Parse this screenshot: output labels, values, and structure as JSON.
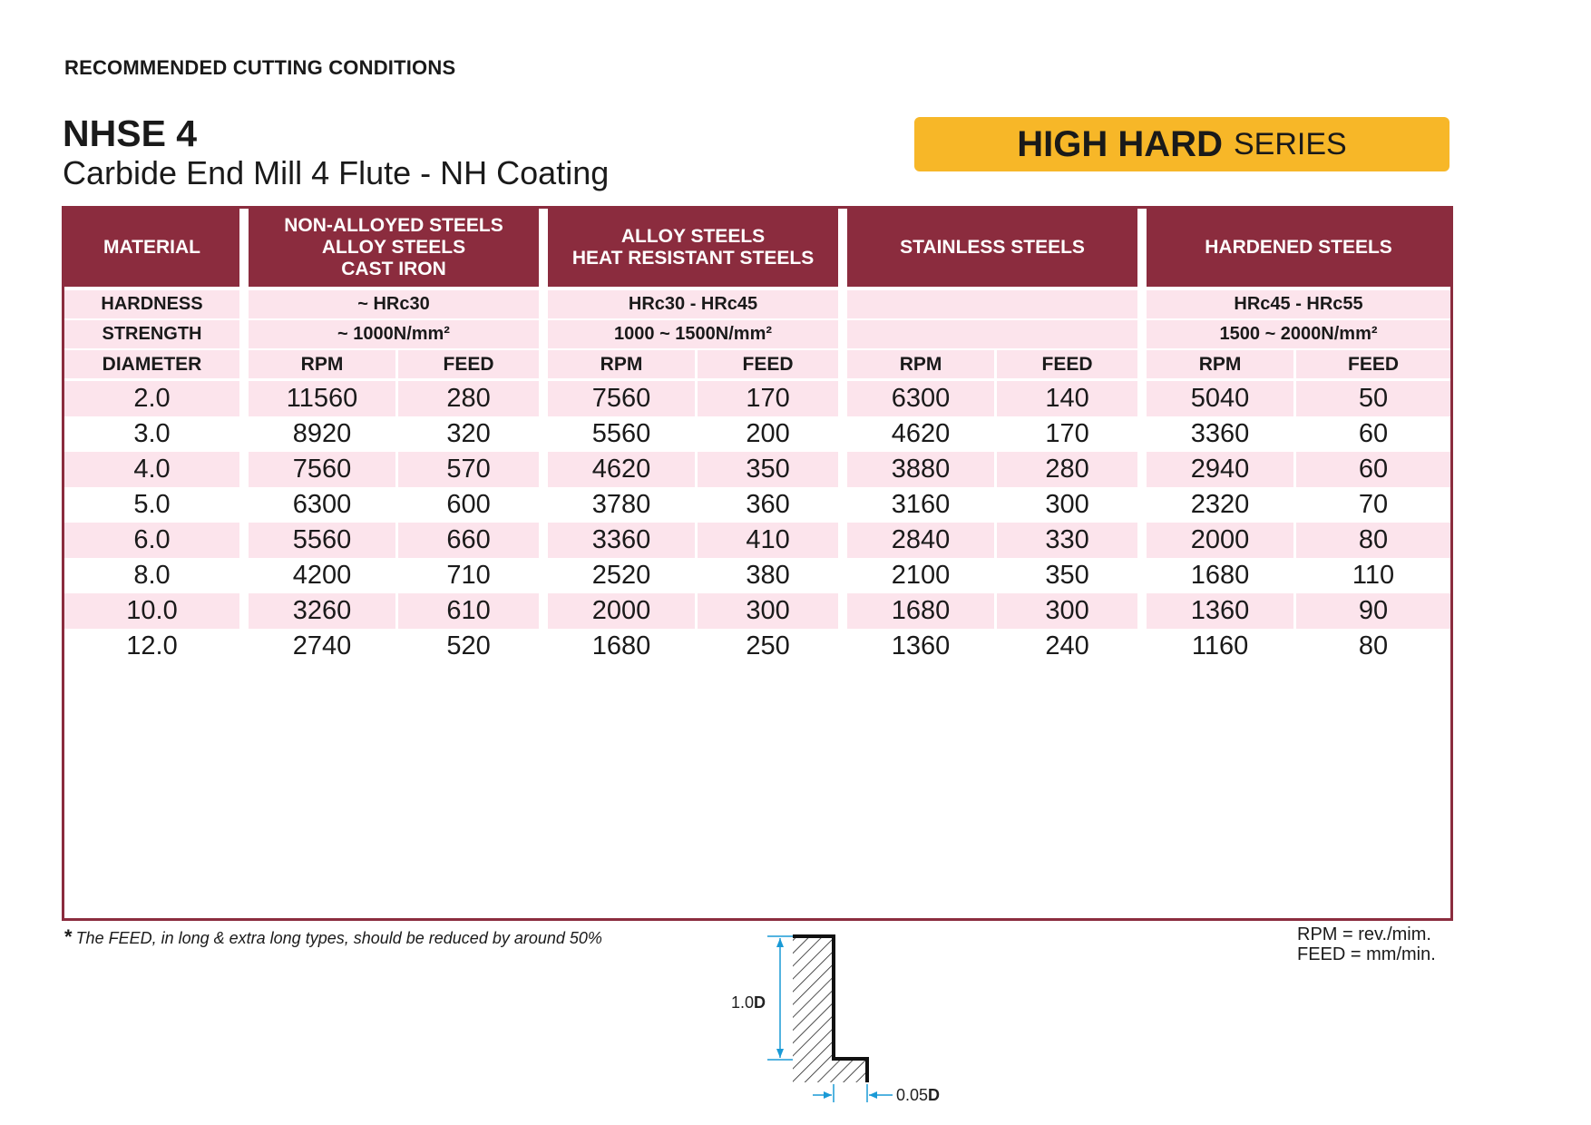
{
  "header": {
    "doc_title": "RECOMMENDED CUTTING CONDITIONS",
    "product_code": "NHSE 4",
    "product_description": "Carbide End Mill 4 Flute - NH Coating",
    "series_badge": {
      "strong": "HIGH HARD",
      "light": "SERIES",
      "color": "#f7b728"
    }
  },
  "colors": {
    "header_bg": "#8b2c3e",
    "row_tint": "#fce4ec"
  },
  "table": {
    "material_label": "MATERIAL",
    "hardness_label": "HARDNESS",
    "strength_label": "STRENGTH",
    "diameter_label": "DIAMETER",
    "rpm_label": "RPM",
    "feed_label": "FEED",
    "materials": [
      {
        "lines": [
          "NON-ALLOYED STEELS",
          "ALLOY STEELS",
          "CAST IRON"
        ],
        "hardness": "~ HRc30",
        "strength": "~ 1000N/mm²"
      },
      {
        "lines": [
          "ALLOY STEELS",
          "HEAT RESISTANT STEELS"
        ],
        "hardness": "HRc30 - HRc45",
        "strength": "1000 ~ 1500N/mm²"
      },
      {
        "lines": [
          "STAINLESS STEELS"
        ],
        "hardness": "",
        "strength": ""
      },
      {
        "lines": [
          "HARDENED STEELS"
        ],
        "hardness": "HRc45 - HRc55",
        "strength": "1500 ~ 2000N/mm²"
      }
    ],
    "rows": [
      {
        "diameter": "2.0",
        "values": [
          "11560",
          "280",
          "7560",
          "170",
          "6300",
          "140",
          "5040",
          "50"
        ]
      },
      {
        "diameter": "3.0",
        "values": [
          "8920",
          "320",
          "5560",
          "200",
          "4620",
          "170",
          "3360",
          "60"
        ]
      },
      {
        "diameter": "4.0",
        "values": [
          "7560",
          "570",
          "4620",
          "350",
          "3880",
          "280",
          "2940",
          "60"
        ]
      },
      {
        "diameter": "5.0",
        "values": [
          "6300",
          "600",
          "3780",
          "360",
          "3160",
          "300",
          "2320",
          "70"
        ]
      },
      {
        "diameter": "6.0",
        "values": [
          "5560",
          "660",
          "3360",
          "410",
          "2840",
          "330",
          "2000",
          "80"
        ]
      },
      {
        "diameter": "8.0",
        "values": [
          "4200",
          "710",
          "2520",
          "380",
          "2100",
          "350",
          "1680",
          "110"
        ]
      },
      {
        "diameter": "10.0",
        "values": [
          "3260",
          "610",
          "2000",
          "300",
          "1680",
          "300",
          "1360",
          "90"
        ]
      },
      {
        "diameter": "12.0",
        "values": [
          "2740",
          "520",
          "1680",
          "250",
          "1360",
          "240",
          "1160",
          "80"
        ]
      }
    ]
  },
  "diagram": {
    "depth_label_num": "1.0",
    "depth_label_unit": "D",
    "width_label_num": "0.05",
    "width_label_unit": "D",
    "accent_color": "#1a9ad6"
  },
  "footnote": {
    "star": "*",
    "text": "The FEED, in long & extra long types, should be reduced by around 50%"
  },
  "legend": {
    "rpm": "RPM = rev./mim.",
    "feed": "FEED = mm/min."
  }
}
